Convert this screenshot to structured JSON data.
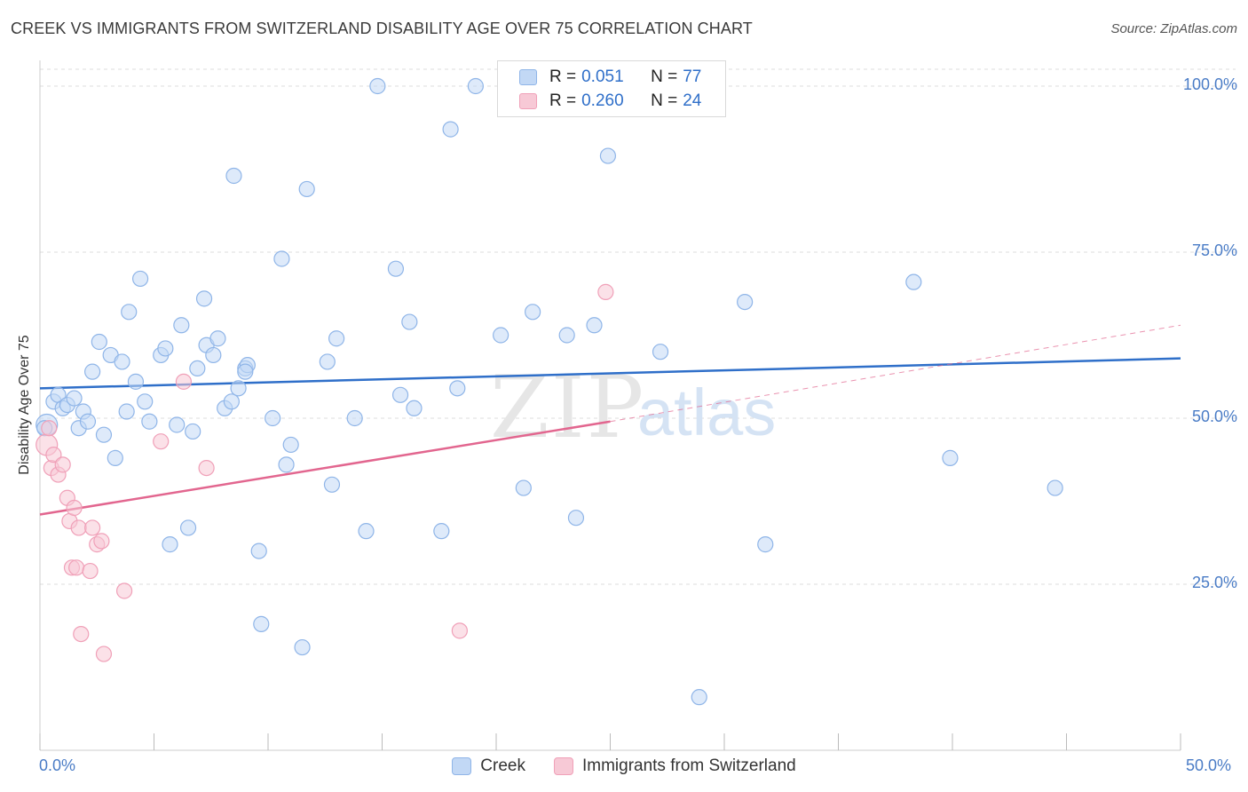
{
  "title": "CREEK VS IMMIGRANTS FROM SWITZERLAND DISABILITY AGE OVER 75 CORRELATION CHART",
  "source": "Source: ZipAtlas.com",
  "watermark": {
    "zip": "ZIP",
    "atlas": "atlas"
  },
  "legend": {
    "rows": [
      {
        "r_label": "R =",
        "r_value": "0.051",
        "n_label": "N =",
        "n_value": "77"
      },
      {
        "r_label": "R =",
        "r_value": "0.260",
        "n_label": "N =",
        "n_value": "24"
      }
    ]
  },
  "chart_data": {
    "type": "scatter",
    "ylabel": "Disability Age Over 75",
    "xlim": [
      0,
      50
    ],
    "ylim": [
      0,
      103
    ],
    "x_tick_labels": [
      "0.0%",
      "50.0%"
    ],
    "y_ticks": [
      {
        "value": 25,
        "label": "25.0%"
      },
      {
        "value": 50,
        "label": "50.0%"
      },
      {
        "value": 75,
        "label": "75.0%"
      },
      {
        "value": 100,
        "label": "100.0%"
      }
    ],
    "grid": true,
    "legend_position": "top-center",
    "series": [
      {
        "name": "Creek",
        "color": "#8fb5e8",
        "fill": "#c2d8f5",
        "line_color": "#2f6fc9",
        "trend": {
          "x0": 0,
          "y0": 54.5,
          "x1": 50,
          "y1": 59
        },
        "points": [
          [
            0.3,
            49
          ],
          [
            0.6,
            52.5
          ],
          [
            0.8,
            53.5
          ],
          [
            1.0,
            51.5
          ],
          [
            1.2,
            52
          ],
          [
            1.5,
            53
          ],
          [
            1.7,
            48.5
          ],
          [
            1.9,
            51
          ],
          [
            2.1,
            49.5
          ],
          [
            2.3,
            57
          ],
          [
            2.6,
            61.5
          ],
          [
            2.8,
            47.5
          ],
          [
            3.1,
            59.5
          ],
          [
            3.3,
            44
          ],
          [
            3.6,
            58.5
          ],
          [
            3.8,
            51
          ],
          [
            3.9,
            66
          ],
          [
            4.2,
            55.5
          ],
          [
            4.4,
            71
          ],
          [
            4.6,
            52.5
          ],
          [
            4.8,
            49.5
          ],
          [
            5.3,
            59.5
          ],
          [
            5.5,
            60.5
          ],
          [
            5.7,
            31
          ],
          [
            6.0,
            49
          ],
          [
            6.2,
            64
          ],
          [
            6.5,
            33.5
          ],
          [
            6.7,
            48
          ],
          [
            6.9,
            57.5
          ],
          [
            7.2,
            68
          ],
          [
            7.3,
            61
          ],
          [
            7.6,
            59.5
          ],
          [
            7.8,
            62
          ],
          [
            8.1,
            51.5
          ],
          [
            8.4,
            52.5
          ],
          [
            8.5,
            86.5
          ],
          [
            8.7,
            54.5
          ],
          [
            9.0,
            57.5
          ],
          [
            9.1,
            58
          ],
          [
            9.6,
            30
          ],
          [
            9.7,
            19
          ],
          [
            10.2,
            50
          ],
          [
            10.6,
            74
          ],
          [
            10.8,
            43
          ],
          [
            11.0,
            46
          ],
          [
            11.5,
            15.5
          ],
          [
            11.7,
            84.5
          ],
          [
            12.6,
            58.5
          ],
          [
            12.8,
            40
          ],
          [
            13.0,
            62
          ],
          [
            13.8,
            50
          ],
          [
            14.3,
            33
          ],
          [
            14.8,
            100
          ],
          [
            15.6,
            72.5
          ],
          [
            15.8,
            53.5
          ],
          [
            16.2,
            64.5
          ],
          [
            16.4,
            51.5
          ],
          [
            17.6,
            33
          ],
          [
            18.0,
            93.5
          ],
          [
            18.3,
            54.5
          ],
          [
            19.1,
            100
          ],
          [
            20.2,
            62.5
          ],
          [
            21.2,
            39.5
          ],
          [
            21.6,
            66
          ],
          [
            23.1,
            62.5
          ],
          [
            23.5,
            35
          ],
          [
            24.3,
            64
          ],
          [
            24.9,
            89.5
          ],
          [
            27.2,
            60
          ],
          [
            28.9,
            8
          ],
          [
            30.9,
            67.5
          ],
          [
            31.8,
            31
          ],
          [
            38.3,
            70.5
          ],
          [
            39.9,
            44
          ],
          [
            44.5,
            39.5
          ],
          [
            0.2,
            48.5
          ],
          [
            9.0,
            57.0
          ]
        ]
      },
      {
        "name": "Immigrants from Switzerland",
        "color": "#f0a0b8",
        "fill": "#f7c9d6",
        "line_color": "#e2668f",
        "trend": {
          "x0": 0,
          "y0": 35.5,
          "x1": 25,
          "y1": 49.5
        },
        "trend_ext": {
          "x0": 25,
          "y0": 49.5,
          "x1": 50,
          "y1": 64
        },
        "points": [
          [
            0.3,
            46
          ],
          [
            0.4,
            48.5
          ],
          [
            0.5,
            42.5
          ],
          [
            0.6,
            44.5
          ],
          [
            0.8,
            41.5
          ],
          [
            1.0,
            43
          ],
          [
            1.2,
            38
          ],
          [
            1.3,
            34.5
          ],
          [
            1.5,
            36.5
          ],
          [
            1.4,
            27.5
          ],
          [
            1.6,
            27.5
          ],
          [
            1.7,
            33.5
          ],
          [
            1.8,
            17.5
          ],
          [
            2.2,
            27
          ],
          [
            2.3,
            33.5
          ],
          [
            2.5,
            31
          ],
          [
            2.7,
            31.5
          ],
          [
            2.8,
            14.5
          ],
          [
            3.7,
            24
          ],
          [
            5.3,
            46.5
          ],
          [
            6.3,
            55.5
          ],
          [
            7.3,
            42.5
          ],
          [
            18.4,
            18
          ],
          [
            24.8,
            69
          ]
        ]
      }
    ]
  }
}
